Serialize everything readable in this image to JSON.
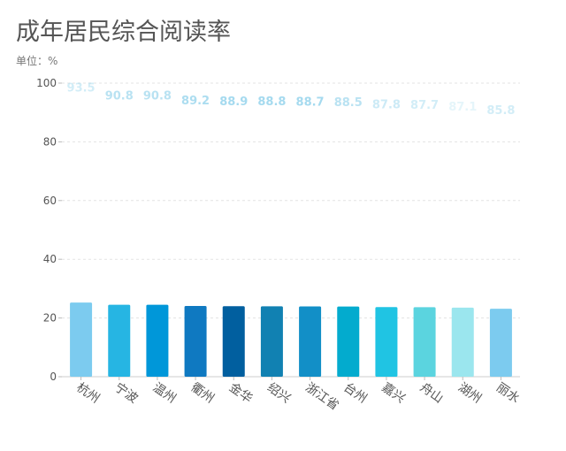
{
  "chart_data": {
    "type": "bar",
    "title": "成年居民综合阅读率",
    "unit_label": "单位：%",
    "categories": [
      "杭州",
      "宁波",
      "温州",
      "衢州",
      "金华",
      "绍兴",
      "浙江省",
      "台州",
      "嘉兴",
      "舟山",
      "湖州",
      "丽水"
    ],
    "values": [
      93.5,
      90.8,
      90.8,
      89.2,
      88.9,
      88.8,
      88.7,
      88.5,
      87.8,
      87.7,
      87.1,
      85.8
    ],
    "data_labels": [
      "93.5",
      "90.8",
      "90.8",
      "89.2",
      "88.9",
      "88.8",
      "88.7",
      "88.5",
      "87.8",
      "87.7",
      "87.1",
      "85.8"
    ],
    "ylim": [
      0,
      100
    ],
    "yticks": [
      0,
      20,
      40,
      60,
      80,
      100
    ],
    "ytick_labels": [
      "0",
      "20",
      "40",
      "60",
      "80",
      "100"
    ],
    "grid": true,
    "animation_progress": 0.27,
    "colors": [
      "#7ccbef",
      "#26b5e3",
      "#0097d9",
      "#0f79c1",
      "#015f9f",
      "#1181b2",
      "#128fc7",
      "#03abce",
      "#20c4e3",
      "#5bd4df",
      "#9be6ee",
      "#7ccbef"
    ],
    "label_color": "#7fcbe8"
  }
}
